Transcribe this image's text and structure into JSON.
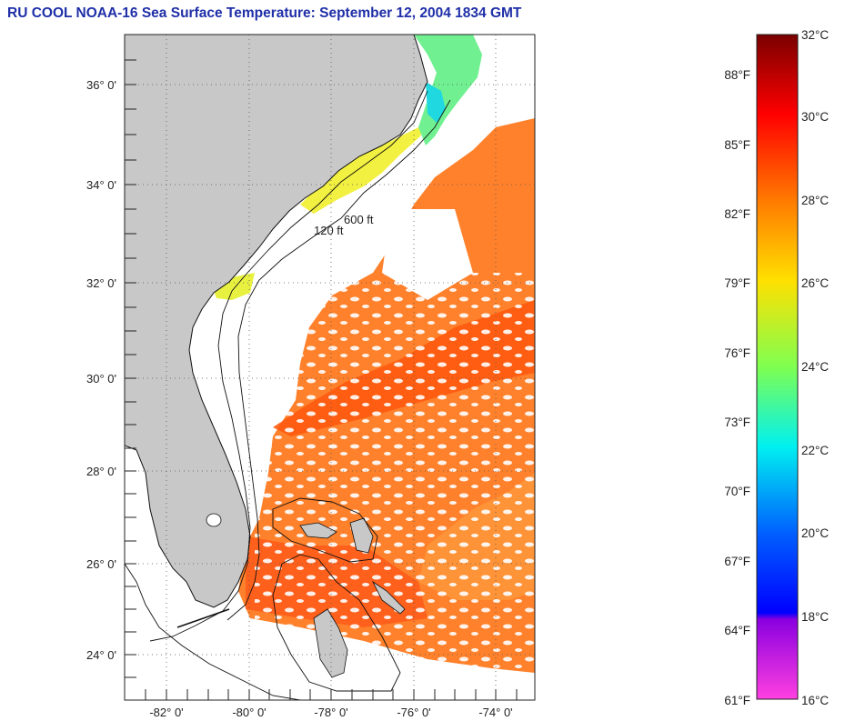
{
  "title": "RU COOL  NOAA-16  Sea Surface Temperature:  September 12, 2004 1834 GMT",
  "map": {
    "lat_labels": [
      "36° 0'",
      "34° 0'",
      "32° 0'",
      "30° 0'",
      "28° 0'",
      "26° 0'",
      "24° 0'"
    ],
    "lon_labels": [
      "-82° 0'",
      "-80° 0'",
      "-78° 0'",
      "-76° 0'",
      "-74° 0'"
    ],
    "contour_labels": [
      "120 ft",
      "600 ft"
    ],
    "land_color": "#c8c8c8",
    "cloud_color": "#ffffff"
  },
  "colorbar": {
    "celsius_labels": [
      "32°C",
      "30°C",
      "28°C",
      "26°C",
      "24°C",
      "22°C",
      "20°C",
      "18°C",
      "16°C"
    ],
    "fahrenheit_labels": [
      "88°F",
      "85°F",
      "82°F",
      "79°F",
      "76°F",
      "73°F",
      "70°F",
      "67°F",
      "64°F",
      "61°F"
    ],
    "stops": [
      "#7a0000",
      "#ff0000",
      "#ff7a00",
      "#ffe000",
      "#7fff50",
      "#00f0f0",
      "#0060ff",
      "#0000ff",
      "#8a00e0",
      "#ff40e0"
    ]
  }
}
